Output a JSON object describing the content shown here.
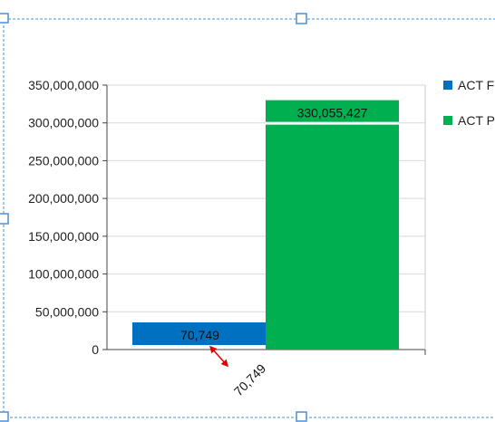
{
  "chart_data": {
    "type": "bar",
    "categories": [
      ""
    ],
    "series": [
      {
        "name": "ACT F",
        "values": [
          70749
        ],
        "color": "#0070c0",
        "data_label": "70,749"
      },
      {
        "name": "ACT P",
        "values": [
          330055427
        ],
        "color": "#00b050",
        "data_label": "330,055,427"
      }
    ],
    "title": "",
    "xlabel": "",
    "ylabel": "",
    "ylim": [
      0,
      350000000
    ],
    "yticks": [
      0,
      50000000,
      100000000,
      150000000,
      200000000,
      250000000,
      300000000,
      350000000
    ],
    "ytick_labels": [
      "0",
      "50,000,000",
      "100,000,000",
      "150,000,000",
      "200,000,000",
      "250,000,000",
      "300,000,000",
      "350,000,000"
    ],
    "grid": true,
    "legend_position": "right",
    "annotation": {
      "text": "70,749",
      "arrow_color": "#e00000"
    }
  },
  "selection_frame_color": "#4a90d9"
}
